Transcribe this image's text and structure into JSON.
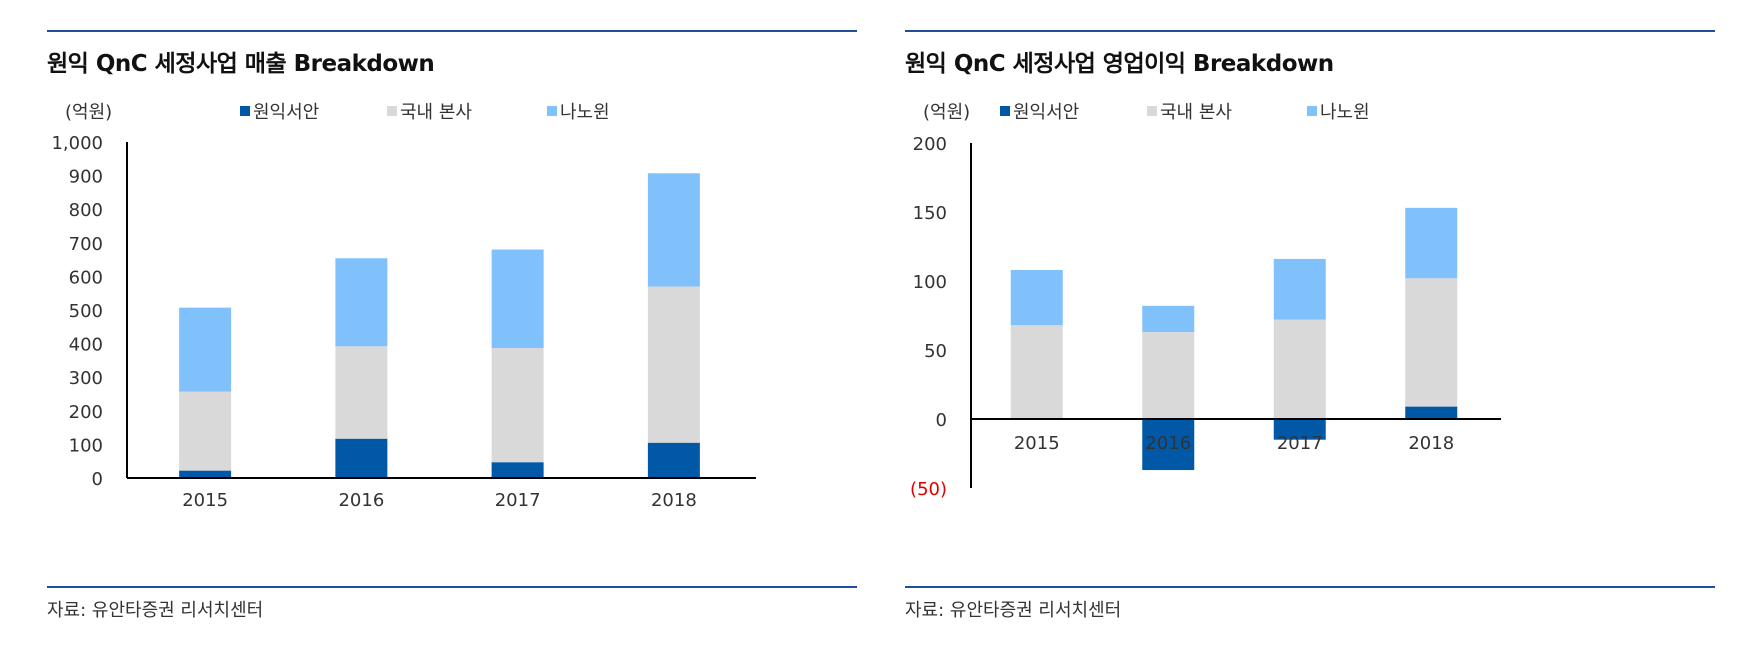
{
  "colors": {
    "rule": "#1f4e9c",
    "wonik_seoan": "#0058a6",
    "domestic_hq": "#d9d9d9",
    "nanowon": "#80c1fc",
    "negative_label": "#e00000"
  },
  "charts": [
    {
      "title": "원익 QnC 세정사업 매출 Breakdown",
      "source": "자료: 유안타증권 리서치센터",
      "chart_data": {
        "type": "bar",
        "stacked": true,
        "title": "원익 QnC 세정사업 매출 Breakdown",
        "unit": "(억원)",
        "categories": [
          "2015",
          "2016",
          "2017",
          "2018"
        ],
        "series": [
          {
            "name": "원익서안",
            "color": "#0058a6",
            "values": [
              22,
              117,
              47,
              105
            ]
          },
          {
            "name": "국내 본사",
            "color": "#d9d9d9",
            "values": [
              235,
              275,
              340,
              465
            ]
          },
          {
            "name": "나노윈",
            "color": "#80c1fc",
            "values": [
              250,
              262,
              293,
              337
            ]
          }
        ],
        "yticks": [
          "0",
          "100",
          "200",
          "300",
          "400",
          "500",
          "600",
          "700",
          "800",
          "900",
          "1,000"
        ],
        "ylim": [
          0,
          1000
        ],
        "legend_position": "top",
        "grid": false
      }
    },
    {
      "title": "원익 QnC 세정사업 영업이익 Breakdown",
      "source": "자료: 유안타증권 리서치센터",
      "chart_data": {
        "type": "bar",
        "stacked": true,
        "title": "원익 QnC 세정사업 영업이익 Breakdown",
        "unit": "(억원)",
        "categories": [
          "2015",
          "2016",
          "2017",
          "2018"
        ],
        "series": [
          {
            "name": "원익서안",
            "color": "#0058a6",
            "values": [
              0,
              -37,
              -15,
              9
            ]
          },
          {
            "name": "국내 본사",
            "color": "#d9d9d9",
            "values": [
              68,
              63,
              72,
              93
            ]
          },
          {
            "name": "나노윈",
            "color": "#80c1fc",
            "values": [
              40,
              19,
              44,
              51
            ]
          }
        ],
        "yticks": [
          "(50)",
          "0",
          "50",
          "100",
          "150",
          "200"
        ],
        "ylim": [
          -50,
          200
        ],
        "legend_position": "top",
        "grid": false
      }
    }
  ]
}
